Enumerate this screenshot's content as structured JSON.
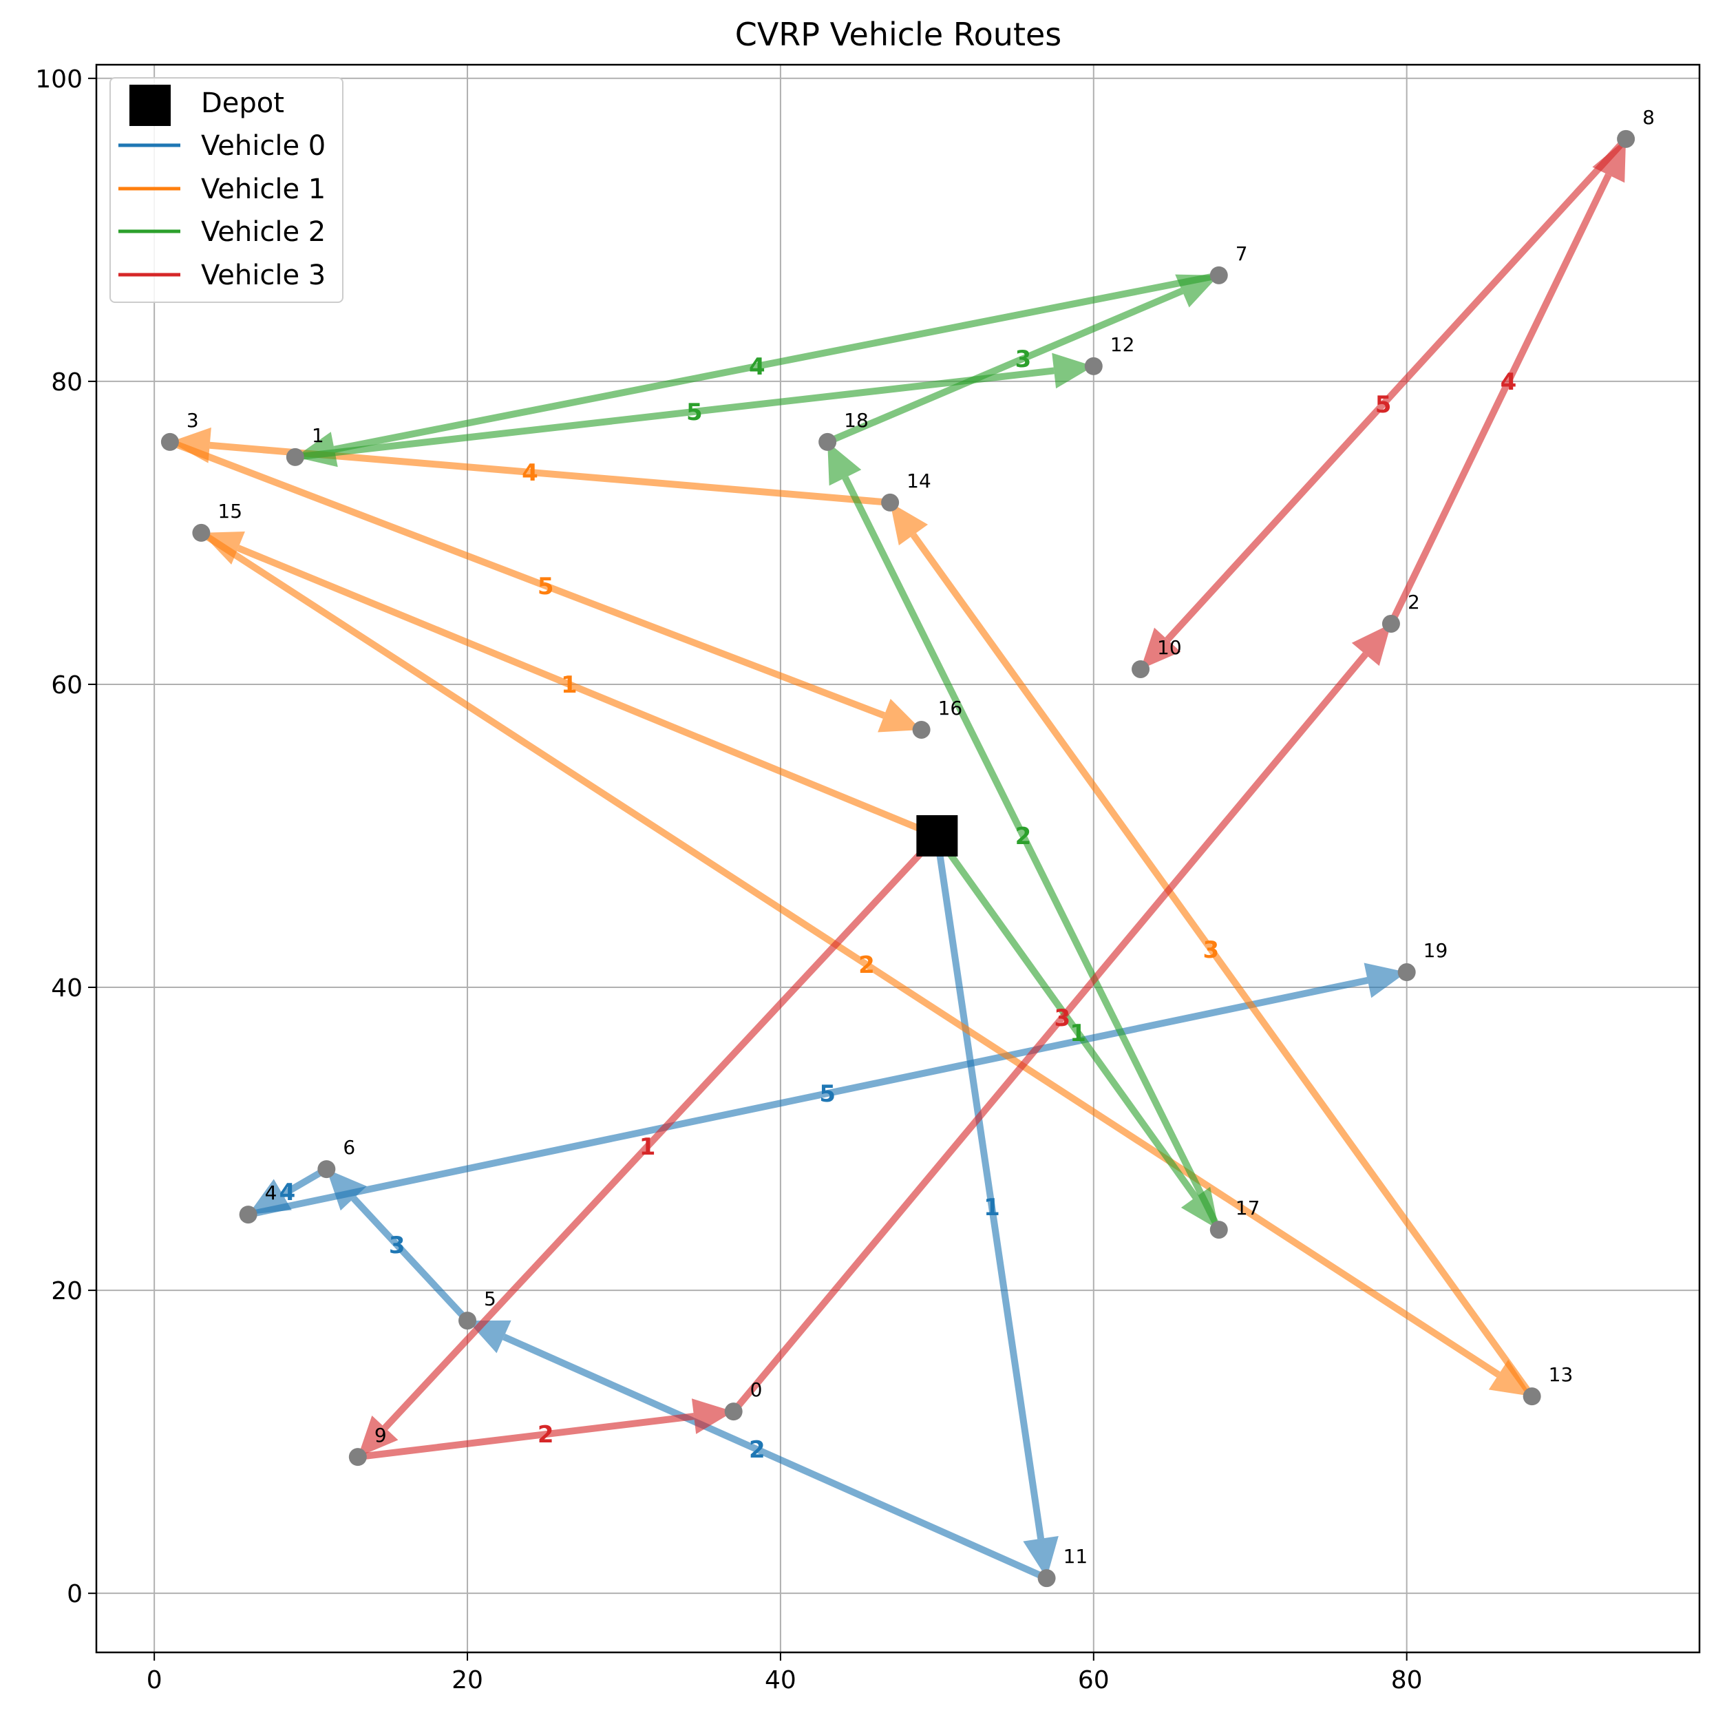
{
  "chart_data": {
    "type": "scatter",
    "title": "CVRP Vehicle Routes",
    "xlabel": "",
    "ylabel": "",
    "xlim": [
      -3.7,
      98.7
    ],
    "ylim": [
      -3.9,
      100.9
    ],
    "xticks": [
      0,
      20,
      40,
      60,
      80
    ],
    "yticks": [
      0,
      20,
      40,
      60,
      80,
      100
    ],
    "grid": true,
    "legend_position": "top-left",
    "depot": {
      "label": "Depot",
      "x": 50,
      "y": 50,
      "color": "#000000"
    },
    "customers": [
      {
        "id": "0",
        "x": 37,
        "y": 12
      },
      {
        "id": "1",
        "x": 9,
        "y": 75
      },
      {
        "id": "2",
        "x": 79,
        "y": 64
      },
      {
        "id": "3",
        "x": 1,
        "y": 76
      },
      {
        "id": "4",
        "x": 6,
        "y": 25
      },
      {
        "id": "5",
        "x": 20,
        "y": 18
      },
      {
        "id": "6",
        "x": 11,
        "y": 28
      },
      {
        "id": "7",
        "x": 68,
        "y": 87
      },
      {
        "id": "8",
        "x": 94,
        "y": 96
      },
      {
        "id": "9",
        "x": 13,
        "y": 9
      },
      {
        "id": "10",
        "x": 63,
        "y": 61
      },
      {
        "id": "11",
        "x": 57,
        "y": 1
      },
      {
        "id": "12",
        "x": 60,
        "y": 81
      },
      {
        "id": "13",
        "x": 88,
        "y": 13
      },
      {
        "id": "14",
        "x": 47,
        "y": 72
      },
      {
        "id": "15",
        "x": 3,
        "y": 70
      },
      {
        "id": "16",
        "x": 49,
        "y": 57
      },
      {
        "id": "17",
        "x": 68,
        "y": 24
      },
      {
        "id": "18",
        "x": 43,
        "y": 76
      },
      {
        "id": "19",
        "x": 80,
        "y": 41
      }
    ],
    "series": [
      {
        "name": "Vehicle 0",
        "color": "#1f77b4",
        "route": [
          "depot",
          "11",
          "5",
          "6",
          "4",
          "19"
        ],
        "steps": [
          "1",
          "2",
          "3",
          "4",
          "5"
        ]
      },
      {
        "name": "Vehicle 1",
        "color": "#ff7f0e",
        "route": [
          "depot",
          "15",
          "13",
          "14",
          "3",
          "16"
        ],
        "steps": [
          "1",
          "2",
          "3",
          "4",
          "5"
        ]
      },
      {
        "name": "Vehicle 2",
        "color": "#2ca02c",
        "route": [
          "depot",
          "17",
          "18",
          "7",
          "1",
          "12"
        ],
        "steps": [
          "1",
          "2",
          "3",
          "4",
          "5"
        ]
      },
      {
        "name": "Vehicle 3",
        "color": "#d62728",
        "route": [
          "depot",
          "9",
          "0",
          "2",
          "8",
          "10"
        ],
        "steps": [
          "1",
          "2",
          "3",
          "4",
          "5"
        ]
      }
    ]
  }
}
